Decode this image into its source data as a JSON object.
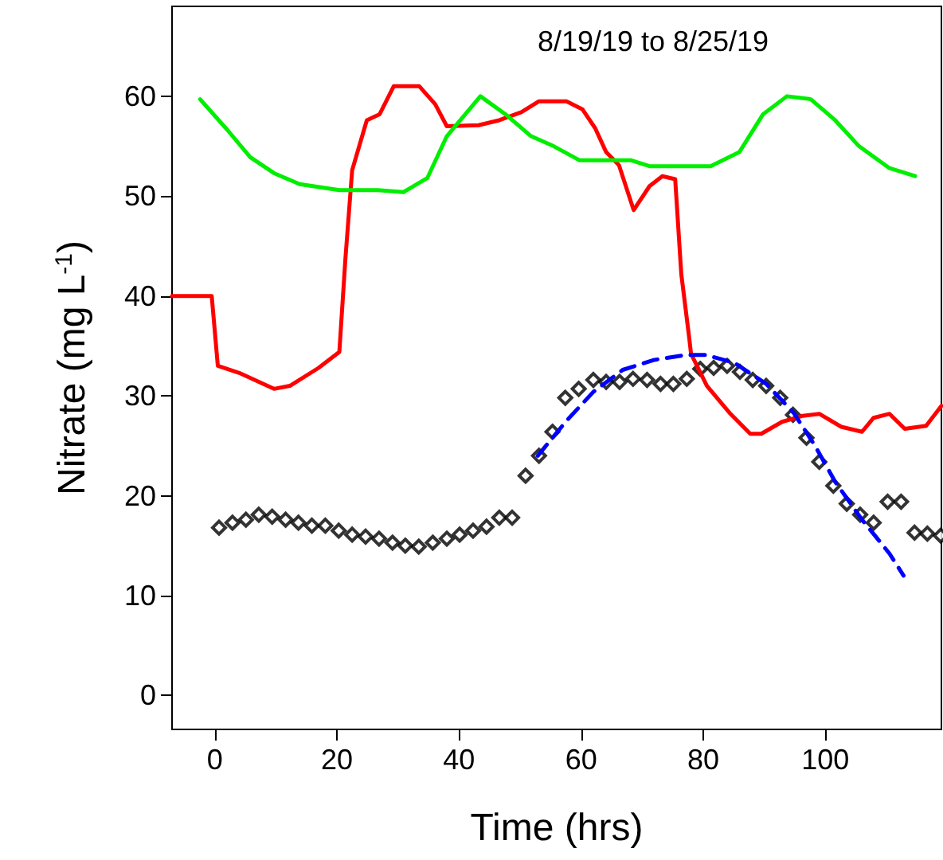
{
  "chart_data": {
    "type": "line",
    "title": "8/19/19 to 8/25/19",
    "xlabel": "Time (hrs)",
    "ylabel": "Nitrate (mg L$^{-1}$)",
    "xlim": [
      -7,
      119
    ],
    "xticks": [
      0,
      20,
      40,
      60,
      80,
      100
    ],
    "ylim": [
      -3.4,
      69
    ],
    "yticks": [
      0,
      10,
      20,
      30,
      40,
      50,
      60
    ],
    "grid": false,
    "series": [
      {
        "color": "#ff0000",
        "line_style": "solid",
        "marker": "none",
        "x": [
          -7,
          -0.5,
          0.5,
          4,
          9.7,
          12.3,
          17,
          20.4,
          21.4,
          22.5,
          24.9,
          27,
          29.3,
          33.5,
          36.1,
          38,
          43.2,
          46.6,
          50.2,
          53.1,
          57.6,
          60.2,
          62.3,
          64.1,
          66.2,
          68.6,
          71.2,
          73.3,
          75.4,
          76.4,
          77.7,
          78,
          80.6,
          84.3,
          87.7,
          89.5,
          92.9,
          96.3,
          99,
          102.6,
          106,
          107.9,
          110.5,
          113,
          116.5,
          119
        ],
        "values": [
          40,
          40,
          33,
          32.3,
          30.7,
          31,
          32.8,
          34.4,
          43.8,
          52.6,
          57.6,
          58.2,
          61,
          61,
          59.2,
          57,
          57.1,
          57.6,
          58.4,
          59.5,
          59.5,
          58.7,
          56.8,
          54.4,
          53.1,
          48.6,
          51,
          52,
          51.7,
          42.2,
          35.8,
          34.2,
          31,
          28.3,
          26.2,
          26.2,
          27.4,
          28,
          28.2,
          26.9,
          26.4,
          27.8,
          28.2,
          26.7,
          27,
          29
        ]
      },
      {
        "color": "#00ee00",
        "line_style": "solid",
        "marker": "none",
        "x": [
          -2.4,
          2.1,
          5.8,
          9.7,
          13.9,
          20.4,
          26.7,
          30.9,
          34.8,
          38,
          43.5,
          47.6,
          51.8,
          55.5,
          59.7,
          68.1,
          71.2,
          81.2,
          85.9,
          89.8,
          93.7,
          97.6,
          101.6,
          105.5,
          110.5,
          114.7
        ],
        "values": [
          59.7,
          56.6,
          53.9,
          52.3,
          51.2,
          50.6,
          50.6,
          50.4,
          51.8,
          56,
          60,
          58.2,
          56,
          55,
          53.6,
          53.6,
          53,
          53,
          54.4,
          58.2,
          60,
          59.7,
          57.6,
          55,
          52.8,
          52
        ]
      },
      {
        "type": "scatter",
        "color": "#000000",
        "marker": "diamond",
        "x": [
          0.7,
          2.9,
          5.1,
          7.2,
          9.4,
          11.6,
          13.7,
          15.9,
          18.1,
          20.3,
          22.5,
          24.7,
          26.9,
          29.1,
          31.2,
          33.4,
          35.7,
          38,
          40.1,
          42.3,
          44.5,
          46.6,
          48.7,
          50.9,
          53.1,
          55.3,
          57.4,
          59.6,
          62,
          64.1,
          66.3,
          68.5,
          70.8,
          73,
          75.1,
          77.3,
          79.5,
          81.7,
          83.9,
          86,
          88.1,
          90.3,
          92.6,
          94.7,
          96.9,
          99,
          101.3,
          103.5,
          105.7,
          107.9,
          110.2,
          112.4,
          114.6,
          116.7,
          118.9
        ],
        "values": [
          16.8,
          17.3,
          17.6,
          18.1,
          17.9,
          17.6,
          17.3,
          17,
          17,
          16.5,
          16.1,
          15.9,
          15.7,
          15.3,
          15,
          14.9,
          15.3,
          15.7,
          16.1,
          16.5,
          16.9,
          17.8,
          17.8,
          22,
          24,
          26.4,
          29.8,
          30.7,
          31.6,
          31.4,
          31.4,
          31.7,
          31.6,
          31.2,
          31.2,
          31.7,
          32.7,
          32.8,
          33,
          32.4,
          31.6,
          31,
          29.8,
          28.1,
          25.8,
          23.4,
          21,
          19.2,
          18.1,
          17.3,
          19.4,
          19.4,
          16.3,
          16.2,
          16
        ]
      },
      {
        "color": "#0000ff",
        "line_style": "dashed",
        "marker": "none",
        "x": [
          52.9,
          57.6,
          62,
          66.8,
          72,
          77.2,
          80.4,
          85.1,
          90.3,
          94.8,
          98.2,
          101.6,
          106,
          110.5,
          112.8
        ],
        "values": [
          24,
          27.5,
          30.4,
          32.6,
          33.6,
          34.1,
          34.1,
          33.3,
          31.2,
          28.3,
          25.1,
          21.4,
          17.6,
          14.2,
          12
        ]
      }
    ]
  }
}
